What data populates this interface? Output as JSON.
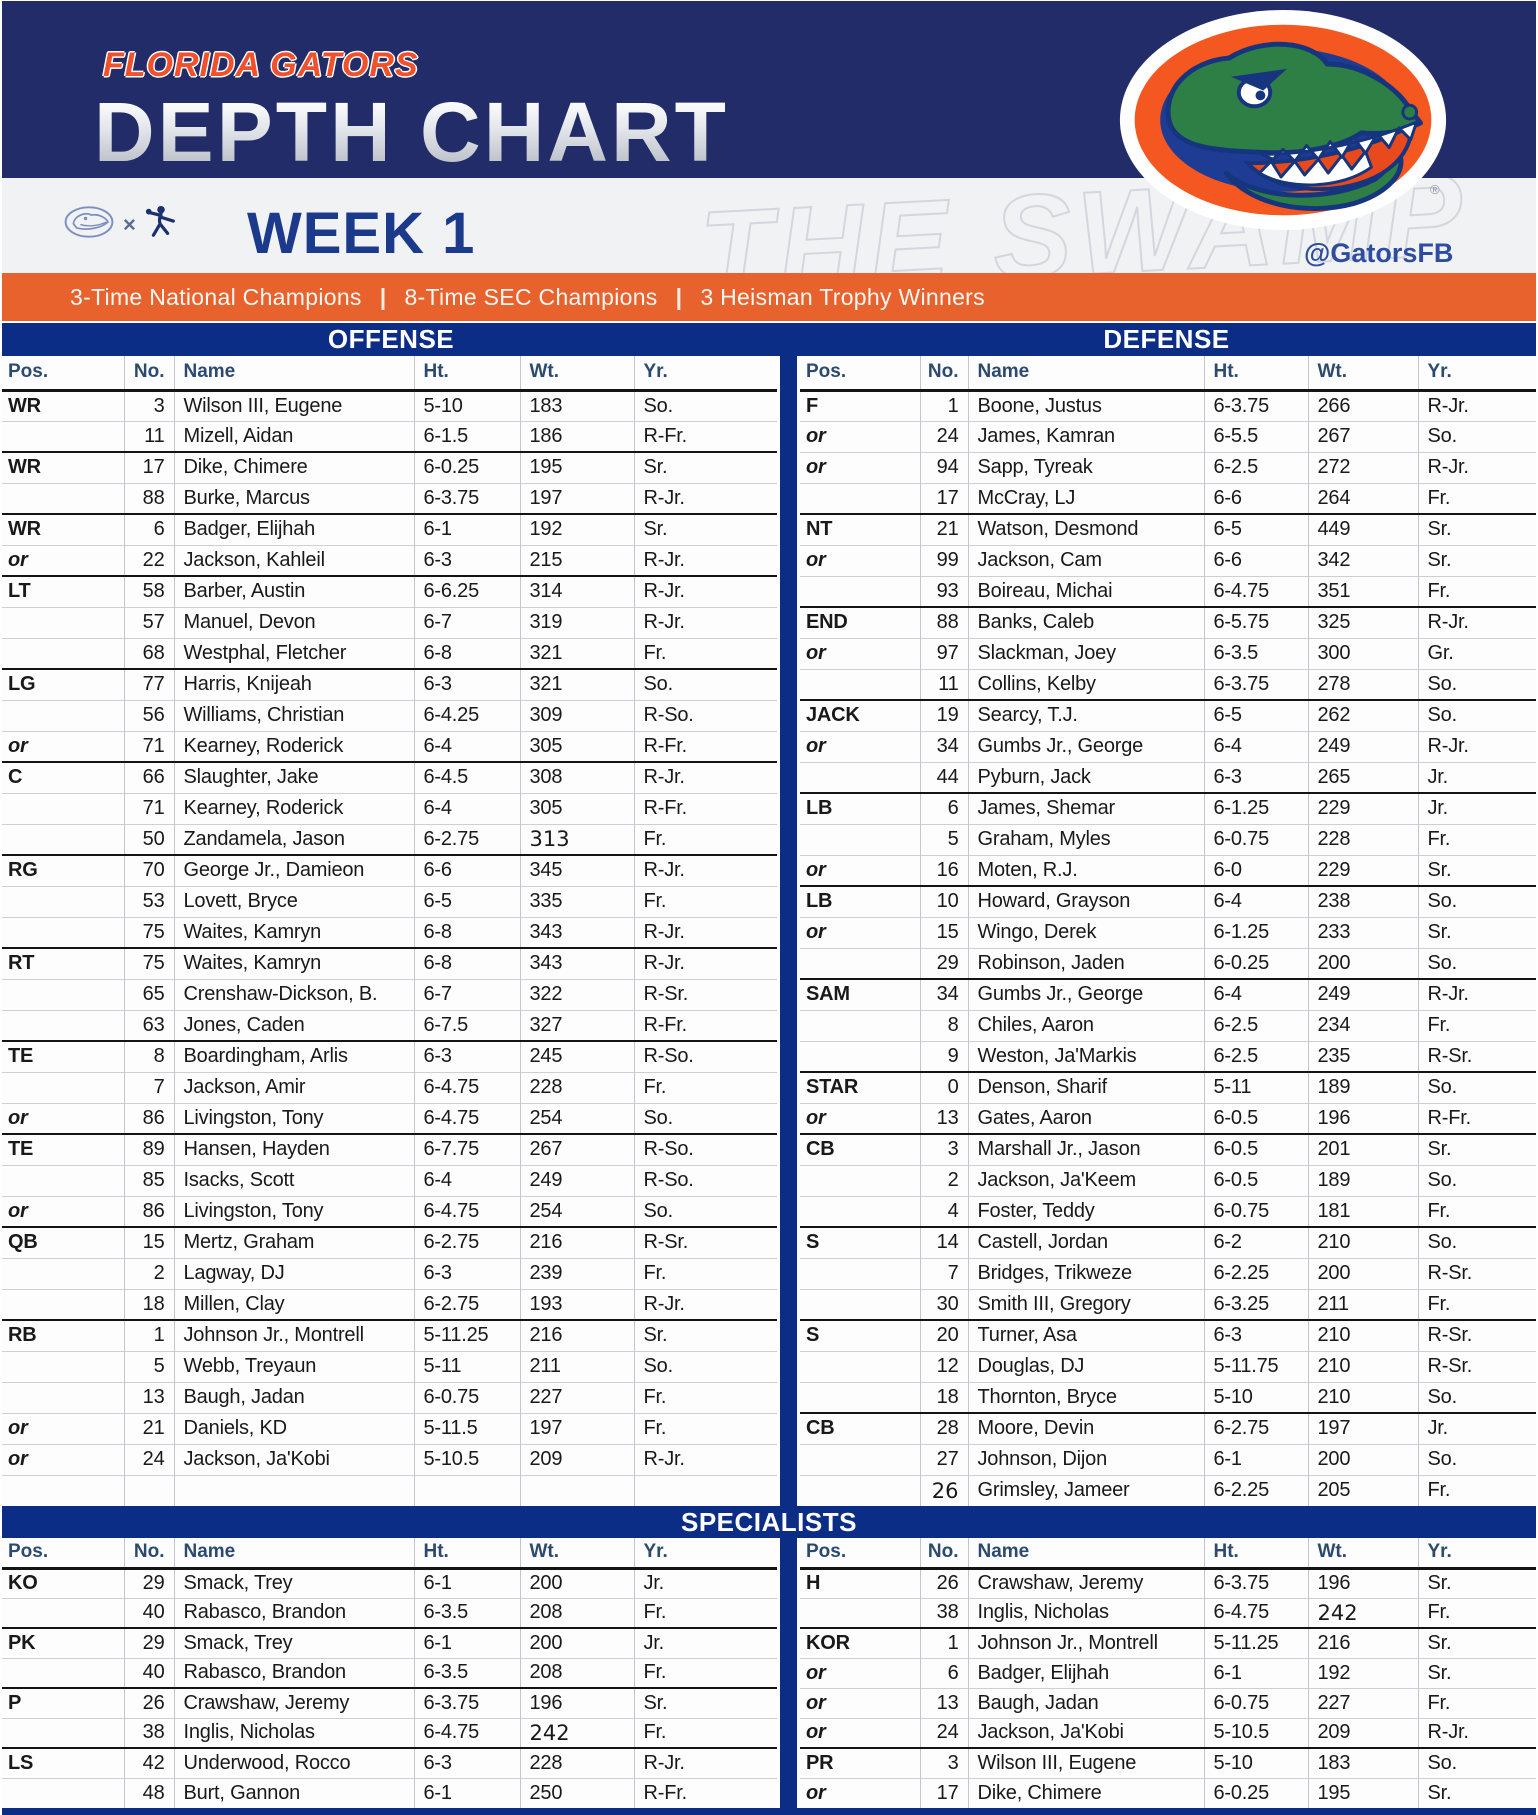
{
  "colors": {
    "header_navy": "#222c68",
    "royal_blue": "#0b2d86",
    "banner_orange": "#e8622d",
    "gator_green": "#2d7f46",
    "gator_ring_orange": "#f4571f",
    "column_header_text": "#2c4a70",
    "week_navy": "#1c3a8c"
  },
  "header": {
    "team": "FLORIDA GATORS",
    "title": "DEPTH CHART",
    "week": "WEEK 1",
    "handle": "@GatorsFB",
    "watermark": "THE SWAMP",
    "registered": "®",
    "banner": {
      "items": [
        "3-Time National Champions",
        "8-Time SEC Champions",
        "3 Heisman Trophy Winners"
      ],
      "separator": "|"
    }
  },
  "columns": [
    "Pos.",
    "No.",
    "Name",
    "Ht.",
    "Wt.",
    "Yr."
  ],
  "sections": {
    "offense": {
      "label": "OFFENSE",
      "rows": [
        {
          "pos": "WR",
          "no": "3",
          "name": "Wilson III, Eugene",
          "ht": "5-10",
          "wt": "183",
          "yr": "So.",
          "group": true
        },
        {
          "pos": "",
          "no": "11",
          "name": "Mizell, Aidan",
          "ht": "6-1.5",
          "wt": "186",
          "yr": "R-Fr."
        },
        {
          "pos": "WR",
          "no": "17",
          "name": "Dike, Chimere",
          "ht": "6-0.25",
          "wt": "195",
          "yr": "Sr.",
          "group": true
        },
        {
          "pos": "",
          "no": "88",
          "name": "Burke, Marcus",
          "ht": "6-3.75",
          "wt": "197",
          "yr": "R-Jr."
        },
        {
          "pos": "WR",
          "no": "6",
          "name": "Badger, Elijhah",
          "ht": "6-1",
          "wt": "192",
          "yr": "Sr.",
          "group": true
        },
        {
          "pos": "or",
          "no": "22",
          "name": "Jackson, Kahleil",
          "ht": "6-3",
          "wt": "215",
          "yr": "R-Jr."
        },
        {
          "pos": "LT",
          "no": "58",
          "name": "Barber, Austin",
          "ht": "6-6.25",
          "wt": "314",
          "yr": "R-Jr.",
          "group": true
        },
        {
          "pos": "",
          "no": "57",
          "name": "Manuel, Devon",
          "ht": "6-7",
          "wt": "319",
          "yr": "R-Jr."
        },
        {
          "pos": "",
          "no": "68",
          "name": "Westphal, Fletcher",
          "ht": "6-8",
          "wt": "321",
          "yr": "Fr."
        },
        {
          "pos": "LG",
          "no": "77",
          "name": "Harris, Knijeah",
          "ht": "6-3",
          "wt": "321",
          "yr": "So.",
          "group": true
        },
        {
          "pos": "",
          "no": "56",
          "name": "Williams, Christian",
          "ht": "6-4.25",
          "wt": "309",
          "yr": "R-So."
        },
        {
          "pos": "or",
          "no": "71",
          "name": "Kearney, Roderick",
          "ht": "6-4",
          "wt": "305",
          "yr": "R-Fr."
        },
        {
          "pos": "C",
          "no": "66",
          "name": "Slaughter, Jake",
          "ht": "6-4.5",
          "wt": "308",
          "yr": "R-Jr.",
          "group": true
        },
        {
          "pos": "",
          "no": "71",
          "name": "Kearney, Roderick",
          "ht": "6-4",
          "wt": "305",
          "yr": "R-Fr."
        },
        {
          "pos": "",
          "no": "50",
          "name": "Zandamela, Jason",
          "ht": "6-2.75",
          "wt": "313",
          "yr": "Fr.",
          "alt": [
            "wt"
          ]
        },
        {
          "pos": "RG",
          "no": "70",
          "name": "George Jr., Damieon",
          "ht": "6-6",
          "wt": "345",
          "yr": "R-Jr.",
          "group": true
        },
        {
          "pos": "",
          "no": "53",
          "name": "Lovett, Bryce",
          "ht": "6-5",
          "wt": "335",
          "yr": "Fr."
        },
        {
          "pos": "",
          "no": "75",
          "name": "Waites, Kamryn",
          "ht": "6-8",
          "wt": "343",
          "yr": "R-Jr."
        },
        {
          "pos": "RT",
          "no": "75",
          "name": "Waites, Kamryn",
          "ht": "6-8",
          "wt": "343",
          "yr": "R-Jr.",
          "group": true
        },
        {
          "pos": "",
          "no": "65",
          "name": "Crenshaw-Dickson, B.",
          "ht": "6-7",
          "wt": "322",
          "yr": "R-Sr."
        },
        {
          "pos": "",
          "no": "63",
          "name": "Jones, Caden",
          "ht": "6-7.5",
          "wt": "327",
          "yr": "R-Fr."
        },
        {
          "pos": "TE",
          "no": "8",
          "name": "Boardingham, Arlis",
          "ht": "6-3",
          "wt": "245",
          "yr": "R-So.",
          "group": true
        },
        {
          "pos": "",
          "no": "7",
          "name": "Jackson, Amir",
          "ht": "6-4.75",
          "wt": "228",
          "yr": "Fr."
        },
        {
          "pos": "or",
          "no": "86",
          "name": "Livingston, Tony",
          "ht": "6-4.75",
          "wt": "254",
          "yr": "So."
        },
        {
          "pos": "TE",
          "no": "89",
          "name": "Hansen, Hayden",
          "ht": "6-7.75",
          "wt": "267",
          "yr": "R-So.",
          "group": true
        },
        {
          "pos": "",
          "no": "85",
          "name": "Isacks, Scott",
          "ht": "6-4",
          "wt": "249",
          "yr": "R-So."
        },
        {
          "pos": "or",
          "no": "86",
          "name": "Livingston, Tony",
          "ht": "6-4.75",
          "wt": "254",
          "yr": "So."
        },
        {
          "pos": "QB",
          "no": "15",
          "name": "Mertz, Graham",
          "ht": "6-2.75",
          "wt": "216",
          "yr": "R-Sr.",
          "group": true
        },
        {
          "pos": "",
          "no": "2",
          "name": "Lagway, DJ",
          "ht": "6-3",
          "wt": "239",
          "yr": "Fr."
        },
        {
          "pos": "",
          "no": "18",
          "name": "Millen, Clay",
          "ht": "6-2.75",
          "wt": "193",
          "yr": "R-Jr."
        },
        {
          "pos": "RB",
          "no": "1",
          "name": "Johnson Jr., Montrell",
          "ht": "5-11.25",
          "wt": "216",
          "yr": "Sr.",
          "group": true
        },
        {
          "pos": "",
          "no": "5",
          "name": "Webb, Treyaun",
          "ht": "5-11",
          "wt": "211",
          "yr": "So."
        },
        {
          "pos": "",
          "no": "13",
          "name": "Baugh, Jadan",
          "ht": "6-0.75",
          "wt": "227",
          "yr": "Fr."
        },
        {
          "pos": "or",
          "no": "21",
          "name": "Daniels, KD",
          "ht": "5-11.5",
          "wt": "197",
          "yr": "Fr."
        },
        {
          "pos": "or",
          "no": "24",
          "name": "Jackson, Ja'Kobi",
          "ht": "5-10.5",
          "wt": "209",
          "yr": "R-Jr."
        },
        {
          "pos": "",
          "no": "",
          "name": "",
          "ht": "",
          "wt": "",
          "yr": "",
          "blank": true
        }
      ]
    },
    "defense": {
      "label": "DEFENSE",
      "rows": [
        {
          "pos": "F",
          "no": "1",
          "name": "Boone, Justus",
          "ht": "6-3.75",
          "wt": "266",
          "yr": "R-Jr.",
          "group": true
        },
        {
          "pos": "or",
          "no": "24",
          "name": "James, Kamran",
          "ht": "6-5.5",
          "wt": "267",
          "yr": "So."
        },
        {
          "pos": "or",
          "no": "94",
          "name": "Sapp, Tyreak",
          "ht": "6-2.5",
          "wt": "272",
          "yr": "R-Jr."
        },
        {
          "pos": "",
          "no": "17",
          "name": "McCray, LJ",
          "ht": "6-6",
          "wt": "264",
          "yr": "Fr."
        },
        {
          "pos": "NT",
          "no": "21",
          "name": "Watson, Desmond",
          "ht": "6-5",
          "wt": "449",
          "yr": "Sr.",
          "group": true
        },
        {
          "pos": "or",
          "no": "99",
          "name": "Jackson, Cam",
          "ht": "6-6",
          "wt": "342",
          "yr": "Sr."
        },
        {
          "pos": "",
          "no": "93",
          "name": "Boireau, Michai",
          "ht": "6-4.75",
          "wt": "351",
          "yr": "Fr."
        },
        {
          "pos": "END",
          "no": "88",
          "name": "Banks, Caleb",
          "ht": "6-5.75",
          "wt": "325",
          "yr": "R-Jr.",
          "group": true
        },
        {
          "pos": "or",
          "no": "97",
          "name": "Slackman, Joey",
          "ht": "6-3.5",
          "wt": "300",
          "yr": "Gr."
        },
        {
          "pos": "",
          "no": "11",
          "name": "Collins, Kelby",
          "ht": "6-3.75",
          "wt": "278",
          "yr": "So."
        },
        {
          "pos": "JACK",
          "no": "19",
          "name": "Searcy, T.J.",
          "ht": "6-5",
          "wt": "262",
          "yr": "So.",
          "group": true
        },
        {
          "pos": "or",
          "no": "34",
          "name": "Gumbs Jr., George",
          "ht": "6-4",
          "wt": "249",
          "yr": "R-Jr."
        },
        {
          "pos": "",
          "no": "44",
          "name": "Pyburn, Jack",
          "ht": "6-3",
          "wt": "265",
          "yr": "Jr."
        },
        {
          "pos": "LB",
          "no": "6",
          "name": "James, Shemar",
          "ht": "6-1.25",
          "wt": "229",
          "yr": "Jr.",
          "group": true
        },
        {
          "pos": "",
          "no": "5",
          "name": "Graham, Myles",
          "ht": "6-0.75",
          "wt": "228",
          "yr": "Fr."
        },
        {
          "pos": "or",
          "no": "16",
          "name": "Moten, R.J.",
          "ht": "6-0",
          "wt": "229",
          "yr": "Sr."
        },
        {
          "pos": "LB",
          "no": "10",
          "name": "Howard, Grayson",
          "ht": "6-4",
          "wt": "238",
          "yr": "So.",
          "group": true
        },
        {
          "pos": "or",
          "no": "15",
          "name": "Wingo, Derek",
          "ht": "6-1.25",
          "wt": "233",
          "yr": "Sr."
        },
        {
          "pos": "",
          "no": "29",
          "name": "Robinson, Jaden",
          "ht": "6-0.25",
          "wt": "200",
          "yr": "So."
        },
        {
          "pos": "SAM",
          "no": "34",
          "name": "Gumbs Jr., George",
          "ht": "6-4",
          "wt": "249",
          "yr": "R-Jr.",
          "group": true
        },
        {
          "pos": "",
          "no": "8",
          "name": "Chiles, Aaron",
          "ht": "6-2.5",
          "wt": "234",
          "yr": "Fr."
        },
        {
          "pos": "",
          "no": "9",
          "name": "Weston, Ja'Markis",
          "ht": "6-2.5",
          "wt": "235",
          "yr": "R-Sr."
        },
        {
          "pos": "STAR",
          "no": "0",
          "name": "Denson, Sharif",
          "ht": "5-11",
          "wt": "189",
          "yr": "So.",
          "group": true
        },
        {
          "pos": "or",
          "no": "13",
          "name": "Gates, Aaron",
          "ht": "6-0.5",
          "wt": "196",
          "yr": "R-Fr."
        },
        {
          "pos": "CB",
          "no": "3",
          "name": "Marshall Jr., Jason",
          "ht": "6-0.5",
          "wt": "201",
          "yr": "Sr.",
          "group": true
        },
        {
          "pos": "",
          "no": "2",
          "name": "Jackson, Ja'Keem",
          "ht": "6-0.5",
          "wt": "189",
          "yr": "So."
        },
        {
          "pos": "",
          "no": "4",
          "name": "Foster, Teddy",
          "ht": "6-0.75",
          "wt": "181",
          "yr": "Fr."
        },
        {
          "pos": "S",
          "no": "14",
          "name": "Castell, Jordan",
          "ht": "6-2",
          "wt": "210",
          "yr": "So.",
          "group": true
        },
        {
          "pos": "",
          "no": "7",
          "name": "Bridges, Trikweze",
          "ht": "6-2.25",
          "wt": "200",
          "yr": "R-Sr."
        },
        {
          "pos": "",
          "no": "30",
          "name": "Smith III, Gregory",
          "ht": "6-3.25",
          "wt": "211",
          "yr": "Fr."
        },
        {
          "pos": "S",
          "no": "20",
          "name": "Turner, Asa",
          "ht": "6-3",
          "wt": "210",
          "yr": "R-Sr.",
          "group": true
        },
        {
          "pos": "",
          "no": "12",
          "name": "Douglas, DJ",
          "ht": "5-11.75",
          "wt": "210",
          "yr": "R-Sr."
        },
        {
          "pos": "",
          "no": "18",
          "name": "Thornton, Bryce",
          "ht": "5-10",
          "wt": "210",
          "yr": "So."
        },
        {
          "pos": "CB",
          "no": "28",
          "name": "Moore, Devin",
          "ht": "6-2.75",
          "wt": "197",
          "yr": "Jr.",
          "group": true
        },
        {
          "pos": "",
          "no": "27",
          "name": "Johnson, Dijon",
          "ht": "6-1",
          "wt": "200",
          "yr": "So."
        },
        {
          "pos": "",
          "no": "26",
          "name": "Grimsley, Jameer",
          "ht": "6-2.25",
          "wt": "205",
          "yr": "Fr.",
          "alt": [
            "no"
          ]
        }
      ]
    },
    "specialists": {
      "label": "SPECIALISTS",
      "left_rows": [
        {
          "pos": "KO",
          "no": "29",
          "name": "Smack, Trey",
          "ht": "6-1",
          "wt": "200",
          "yr": "Jr.",
          "group": true
        },
        {
          "pos": "",
          "no": "40",
          "name": "Rabasco, Brandon",
          "ht": "6-3.5",
          "wt": "208",
          "yr": "Fr."
        },
        {
          "pos": "PK",
          "no": "29",
          "name": "Smack, Trey",
          "ht": "6-1",
          "wt": "200",
          "yr": "Jr.",
          "group": true
        },
        {
          "pos": "",
          "no": "40",
          "name": "Rabasco, Brandon",
          "ht": "6-3.5",
          "wt": "208",
          "yr": "Fr."
        },
        {
          "pos": "P",
          "no": "26",
          "name": "Crawshaw, Jeremy",
          "ht": "6-3.75",
          "wt": "196",
          "yr": "Sr.",
          "group": true
        },
        {
          "pos": "",
          "no": "38",
          "name": "Inglis, Nicholas",
          "ht": "6-4.75",
          "wt": "242",
          "yr": "Fr.",
          "alt": [
            "wt"
          ]
        },
        {
          "pos": "LS",
          "no": "42",
          "name": "Underwood, Rocco",
          "ht": "6-3",
          "wt": "228",
          "yr": "R-Jr.",
          "group": true
        },
        {
          "pos": "",
          "no": "48",
          "name": "Burt, Gannon",
          "ht": "6-1",
          "wt": "250",
          "yr": "R-Fr."
        }
      ],
      "right_rows": [
        {
          "pos": "H",
          "no": "26",
          "name": "Crawshaw, Jeremy",
          "ht": "6-3.75",
          "wt": "196",
          "yr": "Sr.",
          "group": true
        },
        {
          "pos": "",
          "no": "38",
          "name": "Inglis, Nicholas",
          "ht": "6-4.75",
          "wt": "242",
          "yr": "Fr.",
          "alt": [
            "wt"
          ]
        },
        {
          "pos": "KOR",
          "no": "1",
          "name": "Johnson Jr., Montrell",
          "ht": "5-11.25",
          "wt": "216",
          "yr": "Sr.",
          "group": true
        },
        {
          "pos": "or",
          "no": "6",
          "name": "Badger, Elijhah",
          "ht": "6-1",
          "wt": "192",
          "yr": "Sr."
        },
        {
          "pos": "or",
          "no": "13",
          "name": "Baugh, Jadan",
          "ht": "6-0.75",
          "wt": "227",
          "yr": "Fr."
        },
        {
          "pos": "or",
          "no": "24",
          "name": "Jackson, Ja'Kobi",
          "ht": "5-10.5",
          "wt": "209",
          "yr": "R-Jr."
        },
        {
          "pos": "PR",
          "no": "3",
          "name": "Wilson III, Eugene",
          "ht": "5-10",
          "wt": "183",
          "yr": "So.",
          "group": true
        },
        {
          "pos": "or",
          "no": "17",
          "name": "Dike, Chimere",
          "ht": "6-0.25",
          "wt": "195",
          "yr": "Sr."
        }
      ]
    }
  }
}
